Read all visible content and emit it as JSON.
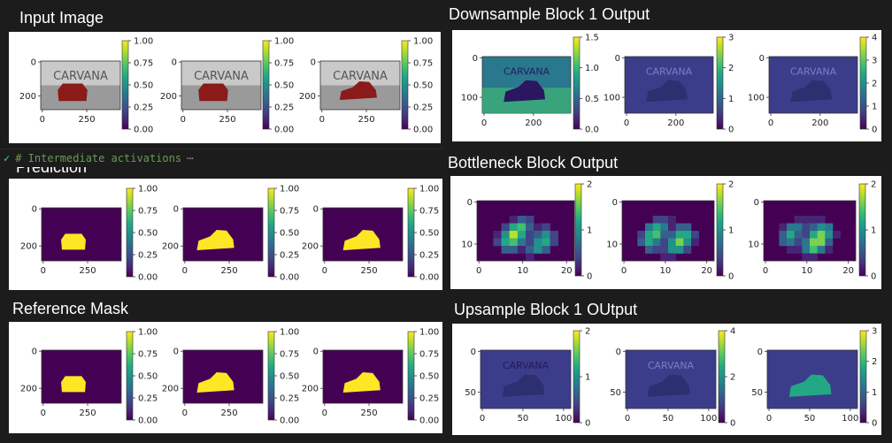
{
  "colors": {
    "bg": "#1c1c1c",
    "panel": "#ffffff",
    "viridis_dark": "#440154",
    "mask_yellow": "#fde725",
    "comment": "#6a9955"
  },
  "code_cell": {
    "check_icon": "check-icon",
    "text": "# Intermediate activations",
    "ellipsis": "⋯"
  },
  "panels": [
    {
      "id": "input",
      "title": "Input Image",
      "kind": "photo",
      "yticks": [
        "0",
        "200"
      ],
      "xticks": [
        "0",
        "250"
      ],
      "cbar_ticks": [
        "1.00",
        "0.75",
        "0.50",
        "0.25",
        "0.00"
      ],
      "logo_text": "CARVANA",
      "subplots": [
        {
          "logo": "CARVANA"
        },
        {
          "logo": "CARVANA"
        },
        {
          "logo": "CARVANA"
        }
      ]
    },
    {
      "id": "prediction",
      "title": "Prediction",
      "kind": "mask",
      "yticks": [
        "0",
        "200"
      ],
      "xticks": [
        "0",
        "250"
      ],
      "cbar_ticks": [
        "1.00",
        "0.75",
        "0.50",
        "0.25",
        "0.00"
      ],
      "subplots": [
        {},
        {},
        {}
      ]
    },
    {
      "id": "reference",
      "title": "Reference Mask",
      "kind": "mask",
      "yticks": [
        "0",
        "200"
      ],
      "xticks": [
        "0",
        "250"
      ],
      "cbar_ticks": [
        "1.00",
        "0.75",
        "0.50",
        "0.25",
        "0.00"
      ],
      "subplots": [
        {},
        {},
        {}
      ]
    },
    {
      "id": "down1",
      "title": "Downsample Block 1 Output",
      "kind": "feature",
      "yticks": [
        "0",
        "100"
      ],
      "xticks": [
        "0",
        "200"
      ],
      "subplots": [
        {
          "cbar_ticks": [
            "1.5",
            "1.0",
            "0.5",
            "0.0"
          ],
          "logo": "CARVANA"
        },
        {
          "cbar_ticks": [
            "3",
            "2",
            "1",
            "0"
          ],
          "logo": "CARVANA"
        },
        {
          "cbar_ticks": [
            "4",
            "3",
            "2",
            "1",
            "0"
          ],
          "logo": "CARVANA"
        }
      ]
    },
    {
      "id": "bottleneck",
      "title": "Bottleneck Block Output",
      "kind": "blocky",
      "yticks": [
        "0",
        "10"
      ],
      "xticks": [
        "0",
        "10",
        "20"
      ],
      "subplots": [
        {
          "cbar_ticks": [
            "2",
            "1",
            "0"
          ]
        },
        {
          "cbar_ticks": [
            "2",
            "1",
            "0"
          ]
        },
        {
          "cbar_ticks": [
            "2",
            "1",
            "0"
          ]
        }
      ]
    },
    {
      "id": "up1",
      "title": "Upsample Block 1 OUtput",
      "kind": "feature2",
      "yticks": [
        "0",
        "50"
      ],
      "xticks": [
        "0",
        "50",
        "100"
      ],
      "subplots": [
        {
          "cbar_ticks": [
            "2",
            "1",
            "0"
          ],
          "logo": "CARVANA"
        },
        {
          "cbar_ticks": [
            "4",
            "2",
            "0"
          ],
          "logo": "CARVANA"
        },
        {
          "cbar_ticks": [
            "3",
            "2",
            "1",
            "0"
          ],
          "logo": ""
        }
      ]
    }
  ]
}
